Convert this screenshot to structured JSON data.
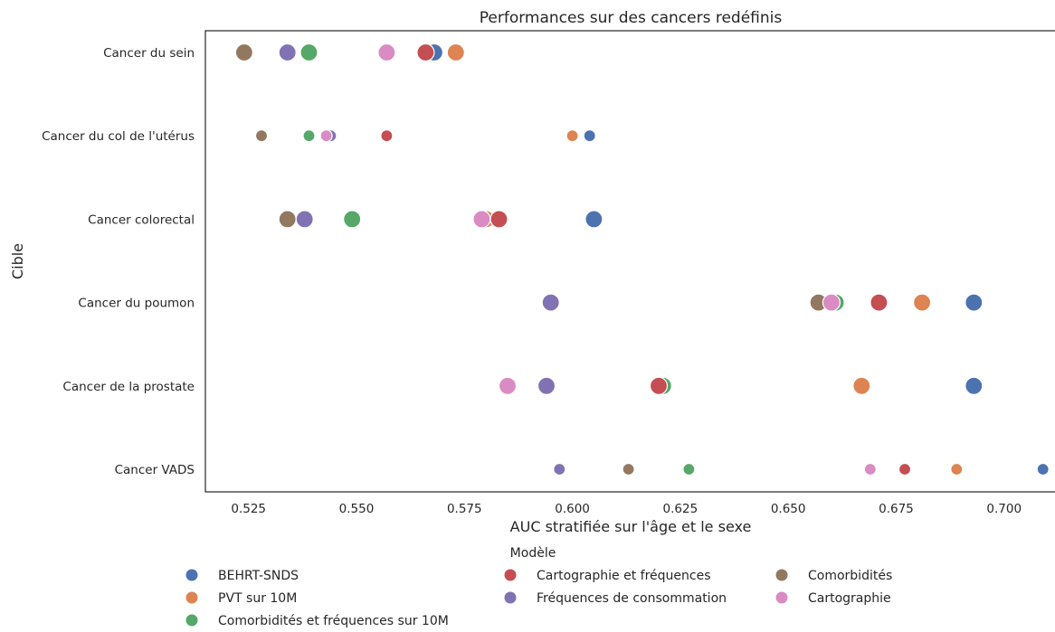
{
  "chart_data": {
    "type": "scatter",
    "title": "Performances sur des cancers redéfinis",
    "xlabel": "AUC stratifiée sur l'âge et le sexe",
    "ylabel": "Cible",
    "xlim": [
      0.515,
      0.712
    ],
    "xticks": [
      "0.525",
      "0.550",
      "0.575",
      "0.600",
      "0.625",
      "0.650",
      "0.675",
      "0.700"
    ],
    "categories": [
      "Cancer du sein",
      "Cancer du col de l'utérus",
      "Cancer colorectal",
      "Cancer du poumon",
      "Cancer de la prostate",
      "Cancer VADS"
    ],
    "grid": false,
    "legend": {
      "title": "Modèle",
      "placement": "bottom-center"
    },
    "marker_size_by_category": [
      "large",
      "small",
      "large",
      "large",
      "large",
      "small"
    ],
    "series": [
      {
        "name": "BEHRT-SNDS",
        "color": "#4c72b0",
        "values": [
          0.568,
          0.604,
          0.605,
          0.693,
          0.693,
          0.709
        ]
      },
      {
        "name": "PVT sur 10M",
        "color": "#dd8452",
        "values": [
          0.573,
          0.6,
          0.58,
          0.681,
          0.667,
          0.689
        ]
      },
      {
        "name": "Comorbidités et fréquences sur 10M",
        "color": "#55a868",
        "values": [
          0.539,
          0.539,
          0.549,
          0.661,
          0.621,
          0.627
        ]
      },
      {
        "name": "Cartographie et fréquences",
        "color": "#c44e52",
        "values": [
          0.566,
          0.557,
          0.583,
          0.671,
          0.62,
          0.677
        ]
      },
      {
        "name": "Fréquences de consommation",
        "color": "#8172b3",
        "values": [
          0.534,
          0.544,
          0.538,
          0.595,
          0.594,
          0.597
        ]
      },
      {
        "name": "Comorbidités",
        "color": "#937860",
        "values": [
          0.524,
          0.528,
          0.534,
          0.657,
          0.585,
          0.613
        ]
      },
      {
        "name": "Cartographie",
        "color": "#da8bc3",
        "values": [
          0.557,
          0.543,
          0.579,
          0.66,
          0.585,
          0.669
        ]
      }
    ]
  }
}
